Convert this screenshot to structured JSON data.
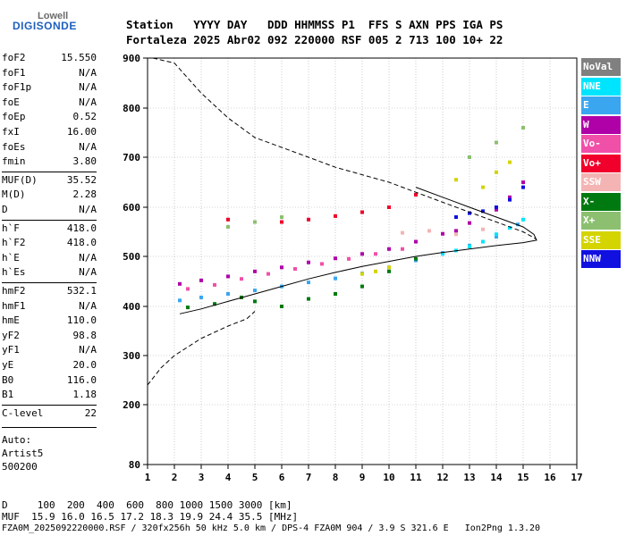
{
  "logo": {
    "top": "Lowell",
    "main": "DIGISONDE"
  },
  "header": {
    "line1": "Station   YYYY DAY   DDD HHMMSS P1  FFS S AXN PPS IGA PS",
    "line2": "Fortaleza 2025 Abr02 092 220000 RSF 005 2 713 100 10+ 22"
  },
  "params_group1": [
    {
      "k": "foF2",
      "v": "15.550"
    },
    {
      "k": "foF1",
      "v": "N/A"
    },
    {
      "k": "foF1p",
      "v": "N/A"
    },
    {
      "k": "foE",
      "v": "N/A"
    },
    {
      "k": "foEp",
      "v": "0.52"
    },
    {
      "k": "fxI",
      "v": "16.00"
    },
    {
      "k": "foEs",
      "v": "N/A"
    },
    {
      "k": "fmin",
      "v": "3.80"
    }
  ],
  "params_group2": [
    {
      "k": "MUF(D)",
      "v": "35.52"
    },
    {
      "k": "M(D)",
      "v": "2.28"
    },
    {
      "k": "D",
      "v": "N/A"
    }
  ],
  "params_group3": [
    {
      "k": "h`F",
      "v": "418.0"
    },
    {
      "k": "h`F2",
      "v": "418.0"
    },
    {
      "k": "h`E",
      "v": "N/A"
    },
    {
      "k": "h`Es",
      "v": "N/A"
    }
  ],
  "params_group4": [
    {
      "k": "hmF2",
      "v": "532.1"
    },
    {
      "k": "hmF1",
      "v": "N/A"
    },
    {
      "k": "hmE",
      "v": "110.0"
    },
    {
      "k": "yF2",
      "v": "98.8"
    },
    {
      "k": "yF1",
      "v": "N/A"
    },
    {
      "k": "yE",
      "v": "20.0"
    },
    {
      "k": "B0",
      "v": "116.0"
    },
    {
      "k": "B1",
      "v": "1.18"
    }
  ],
  "params_group5": [
    {
      "k": "C-level",
      "v": "22"
    }
  ],
  "auto": {
    "line1": "Auto:",
    "line2": "Artist5",
    "line3": "500200"
  },
  "footer": {
    "d_line": "D     100  200  400  600  800 1000 1500 3000 [km]",
    "muf_line": "MUF  15.9 16.0 16.5 17.2 18.3 19.9 24.4 35.5 [MHz]",
    "file_line": "FZA0M_2025092220000.RSF / 320fx256h 50 kHz 5.0 km / DPS-4 FZA0M 904 / 3.9 S 321.6 E   Ion2Png 1.3.20"
  },
  "legend": [
    {
      "label": "NoVal",
      "color": "#808080"
    },
    {
      "label": "NNE",
      "color": "#00e5ff"
    },
    {
      "label": "E",
      "color": "#3aa6f0"
    },
    {
      "label": "W",
      "color": "#b000a8"
    },
    {
      "label": "Vo-",
      "color": "#f050a8"
    },
    {
      "label": "Vo+",
      "color": "#f0002a"
    },
    {
      "label": "SSW",
      "color": "#f4b4b4"
    },
    {
      "label": "X-",
      "color": "#007a10"
    },
    {
      "label": "X+",
      "color": "#8cc070"
    },
    {
      "label": "SSE",
      "color": "#d4d400"
    },
    {
      "label": "NNW",
      "color": "#1010e0"
    }
  ],
  "chart_data": {
    "type": "scatter",
    "xlabel": "",
    "ylabel": "",
    "xlim": [
      1,
      17
    ],
    "ylim": [
      80,
      900
    ],
    "x_ticks": [
      1,
      2,
      3,
      4,
      5,
      6,
      7,
      8,
      9,
      10,
      11,
      12,
      13,
      14,
      15,
      16,
      17
    ],
    "y_ticks": [
      80,
      200,
      300,
      400,
      500,
      600,
      700,
      800,
      900
    ],
    "grid": true,
    "series": [
      {
        "name": "E",
        "color": "#3aa6f0",
        "points": [
          [
            2.2,
            412
          ],
          [
            3,
            418
          ],
          [
            4,
            425
          ],
          [
            5,
            432
          ],
          [
            6,
            440
          ],
          [
            7,
            448
          ],
          [
            8,
            456
          ],
          [
            9,
            466
          ],
          [
            10,
            478
          ],
          [
            11,
            492
          ],
          [
            12,
            507
          ],
          [
            13,
            522
          ],
          [
            14,
            540
          ],
          [
            14.8,
            565
          ]
        ]
      },
      {
        "name": "NNE",
        "color": "#00e5ff",
        "points": [
          [
            12,
            505
          ],
          [
            12.5,
            512
          ],
          [
            13,
            520
          ],
          [
            13.5,
            530
          ],
          [
            14,
            545
          ],
          [
            14.5,
            558
          ],
          [
            15,
            575
          ]
        ]
      },
      {
        "name": "W",
        "color": "#b000a8",
        "points": [
          [
            2.2,
            445
          ],
          [
            3,
            452
          ],
          [
            4,
            460
          ],
          [
            5,
            470
          ],
          [
            6,
            478
          ],
          [
            7,
            488
          ],
          [
            8,
            496
          ],
          [
            9,
            505
          ],
          [
            10,
            515
          ],
          [
            11,
            530
          ],
          [
            12,
            546
          ],
          [
            12.5,
            552
          ],
          [
            13,
            568
          ],
          [
            14,
            595
          ],
          [
            14.5,
            620
          ],
          [
            15,
            650
          ]
        ]
      },
      {
        "name": "Vo-",
        "color": "#f050a8",
        "points": [
          [
            2.5,
            435
          ],
          [
            3.5,
            443
          ],
          [
            4.5,
            455
          ],
          [
            5.5,
            465
          ],
          [
            6.5,
            475
          ],
          [
            7.5,
            485
          ],
          [
            8.5,
            495
          ],
          [
            9.5,
            505
          ],
          [
            10.5,
            515
          ]
        ]
      },
      {
        "name": "Vo+",
        "color": "#f0002a",
        "points": [
          [
            4,
            575
          ],
          [
            6,
            570
          ],
          [
            7,
            575
          ],
          [
            8,
            582
          ],
          [
            9,
            590
          ],
          [
            10,
            600
          ],
          [
            11,
            625
          ]
        ]
      },
      {
        "name": "SSW",
        "color": "#f4b4b4",
        "points": [
          [
            10.5,
            548
          ],
          [
            11.5,
            552
          ],
          [
            12.5,
            545
          ],
          [
            13.5,
            555
          ]
        ]
      },
      {
        "name": "X-",
        "color": "#007a10",
        "points": [
          [
            2.5,
            398
          ],
          [
            3.5,
            405
          ],
          [
            4.5,
            418
          ],
          [
            5,
            410
          ],
          [
            6,
            400
          ],
          [
            7,
            415
          ],
          [
            8,
            425
          ],
          [
            9,
            440
          ],
          [
            10,
            470
          ],
          [
            11,
            495
          ]
        ]
      },
      {
        "name": "X+",
        "color": "#8cc070",
        "points": [
          [
            4,
            560
          ],
          [
            5,
            570
          ],
          [
            6,
            580
          ],
          [
            13,
            700
          ],
          [
            14,
            730
          ],
          [
            15,
            760
          ]
        ]
      },
      {
        "name": "SSE",
        "color": "#d4d400",
        "points": [
          [
            9,
            465
          ],
          [
            9.5,
            470
          ],
          [
            10,
            478
          ],
          [
            12.5,
            655
          ],
          [
            13.5,
            640
          ],
          [
            14,
            670
          ],
          [
            14.5,
            690
          ]
        ]
      },
      {
        "name": "NNW",
        "color": "#1010e0",
        "points": [
          [
            12.5,
            580
          ],
          [
            13,
            588
          ],
          [
            13.5,
            592
          ],
          [
            14,
            600
          ],
          [
            14.5,
            615
          ],
          [
            15,
            640
          ]
        ]
      }
    ],
    "curves": [
      {
        "style": "solid",
        "points": [
          [
            2.2,
            385
          ],
          [
            3,
            395
          ],
          [
            4,
            410
          ],
          [
            5,
            425
          ],
          [
            6,
            440
          ],
          [
            7,
            455
          ],
          [
            8,
            468
          ],
          [
            9,
            480
          ],
          [
            10,
            490
          ],
          [
            11,
            500
          ],
          [
            12,
            508
          ],
          [
            13,
            515
          ],
          [
            14,
            522
          ],
          [
            15,
            528
          ],
          [
            15.5,
            533
          ],
          [
            15.4,
            545
          ],
          [
            15,
            560
          ],
          [
            14,
            580
          ],
          [
            13,
            600
          ],
          [
            12,
            620
          ],
          [
            11,
            640
          ]
        ]
      },
      {
        "style": "dashed",
        "points": [
          [
            1,
            240
          ],
          [
            1.5,
            275
          ],
          [
            2,
            300
          ],
          [
            3,
            335
          ],
          [
            4,
            360
          ],
          [
            4.7,
            375
          ],
          [
            5,
            390
          ]
        ]
      },
      {
        "style": "dashed",
        "points": [
          [
            1.2,
            900
          ],
          [
            2,
            890
          ],
          [
            3,
            830
          ],
          [
            4,
            780
          ],
          [
            5,
            740
          ],
          [
            6,
            720
          ],
          [
            7,
            700
          ],
          [
            8,
            680
          ],
          [
            9,
            665
          ],
          [
            10,
            650
          ],
          [
            11,
            630
          ],
          [
            12,
            610
          ],
          [
            13,
            590
          ],
          [
            14,
            570
          ],
          [
            15,
            550
          ],
          [
            15.5,
            535
          ]
        ]
      }
    ]
  }
}
